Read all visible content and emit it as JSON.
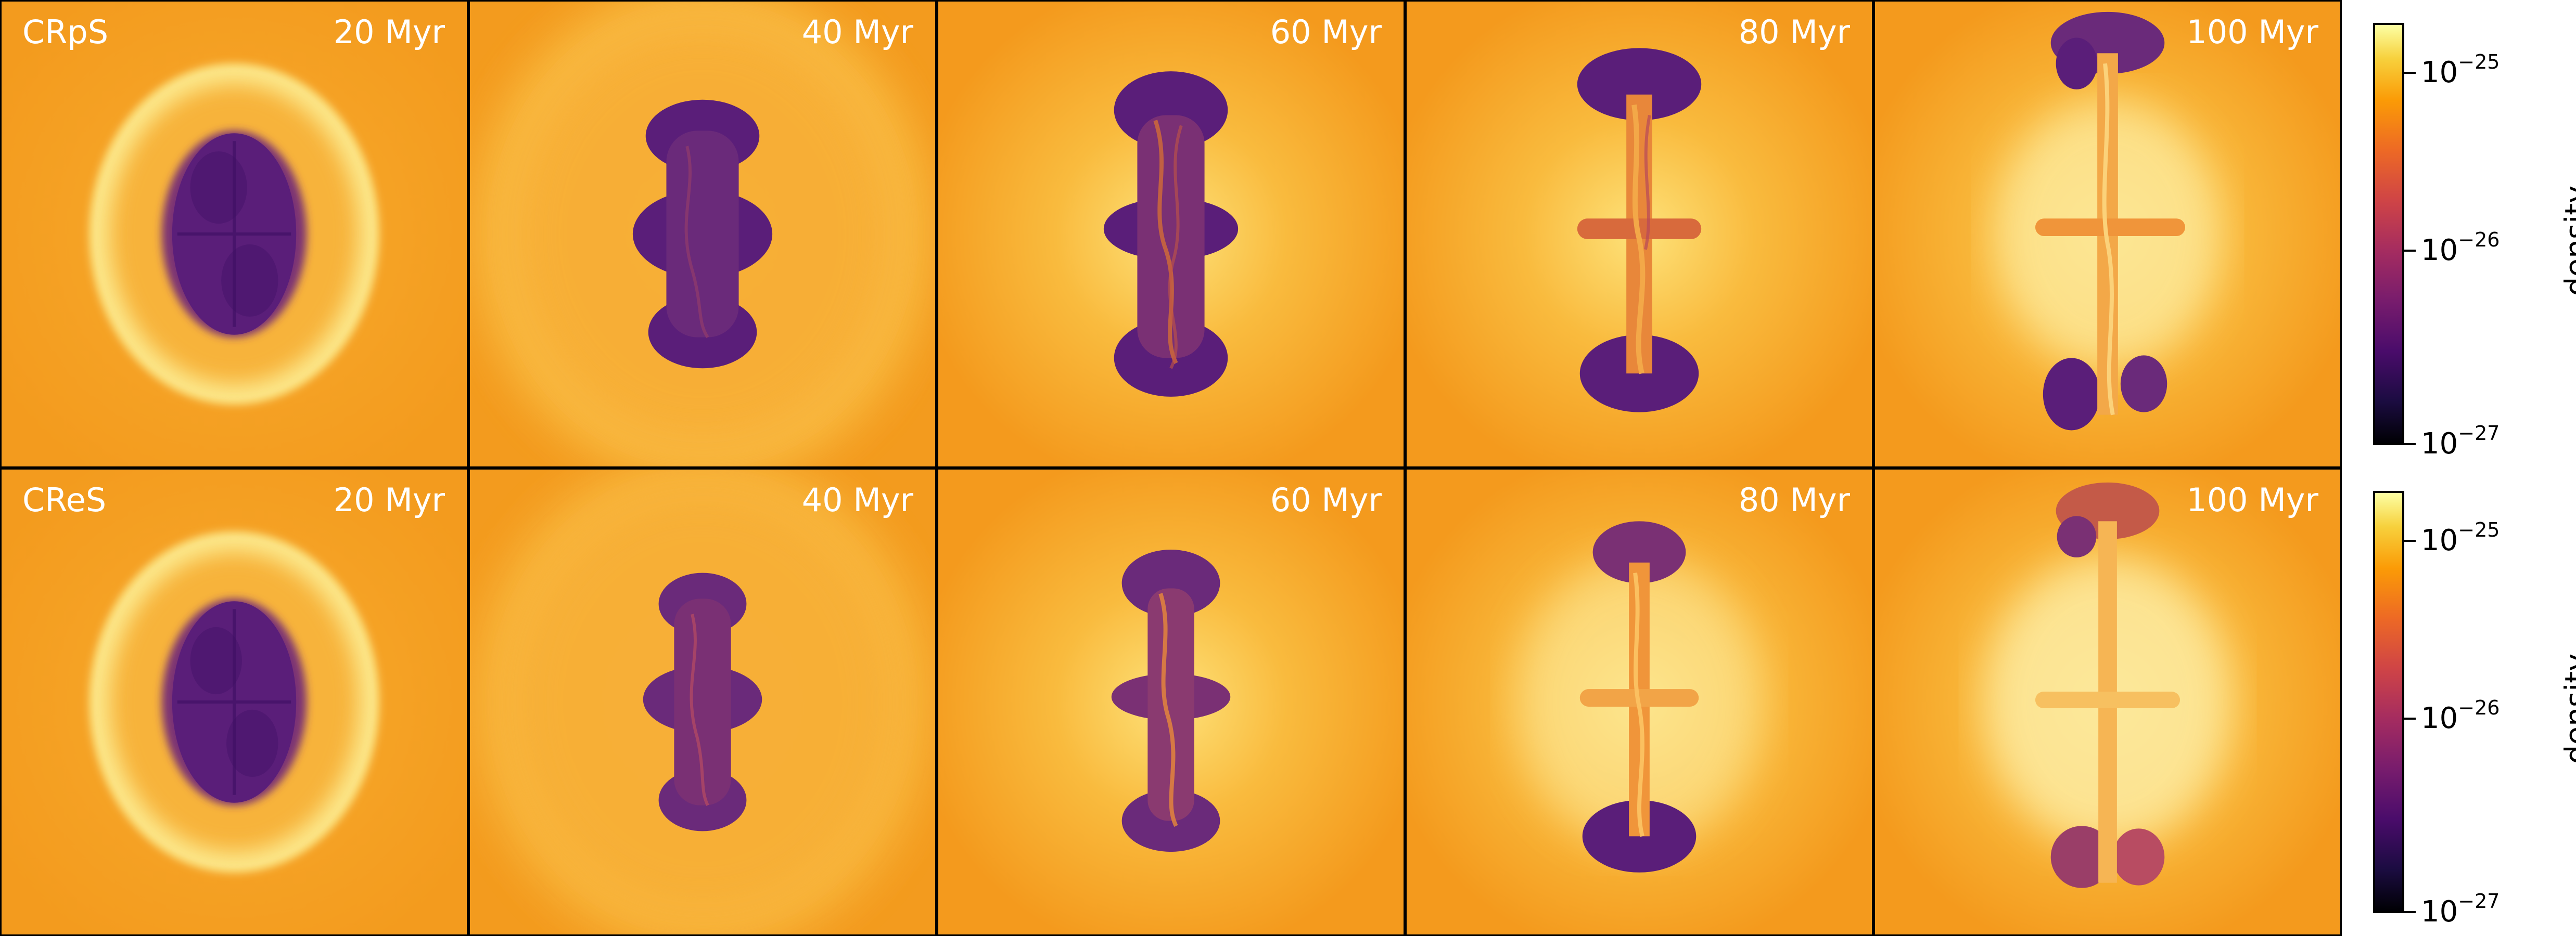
{
  "rows": [
    {
      "run_label": "CRpS",
      "panels": [
        {
          "time": "20 Myr"
        },
        {
          "time": "40 Myr"
        },
        {
          "time": "60 Myr"
        },
        {
          "time": "80 Myr"
        },
        {
          "time": "100 Myr"
        }
      ]
    },
    {
      "run_label": "CReS",
      "panels": [
        {
          "time": "20 Myr"
        },
        {
          "time": "40 Myr"
        },
        {
          "time": "60 Myr"
        },
        {
          "time": "80 Myr"
        },
        {
          "time": "100 Myr"
        }
      ]
    }
  ],
  "colorbar": {
    "label": "density",
    "colormap": "inferno",
    "scale": "log",
    "ticks": [
      {
        "base": "10",
        "exp": "−25"
      },
      {
        "base": "10",
        "exp": "−26"
      },
      {
        "base": "10",
        "exp": "−27"
      }
    ]
  },
  "colors": {
    "background": "#f7a529",
    "bubble_core": "#5e2078",
    "shell": "#fbe07a",
    "text": "#ffffff"
  }
}
